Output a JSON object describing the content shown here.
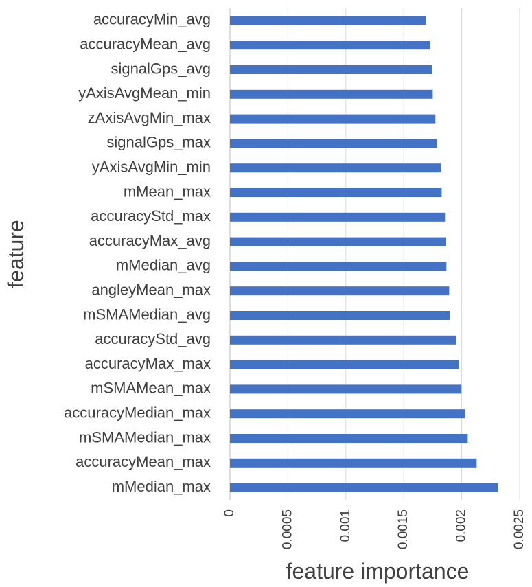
{
  "chart_data": {
    "type": "barh",
    "x_label": "feature importance",
    "y_label": "feature",
    "categories": [
      "accuracyMin_avg",
      "accuracyMean_avg",
      "signalGps_avg",
      "yAxisAvgMean_min",
      "zAxisAvgMin_max",
      "signalGps_max",
      "yAxisAvgMin_min",
      "mMean_max",
      "accuracyStd_max",
      "accuracyMax_avg",
      "mMedian_avg",
      "angleyMean_max",
      "mSMAMedian_avg",
      "accuracyStd_avg",
      "accuracyMax_max",
      "mSMAMean_max",
      "accuracyMedian_max",
      "mSMAMedian_max",
      "accuracyMean_max",
      "mMedian_max"
    ],
    "values": [
      0.00169,
      0.001726,
      0.001744,
      0.00175,
      0.001773,
      0.001785,
      0.00182,
      0.001827,
      0.001856,
      0.001862,
      0.001868,
      0.001892,
      0.001898,
      0.001951,
      0.001975,
      0.001998,
      0.002028,
      0.002052,
      0.002129,
      0.002313
    ],
    "color": "#4472c4",
    "xlim": [
      0,
      0.0025
    ],
    "xticks": [
      0,
      0.0005,
      0.001,
      0.0015,
      0.002,
      0.0025
    ],
    "grid": true
  }
}
